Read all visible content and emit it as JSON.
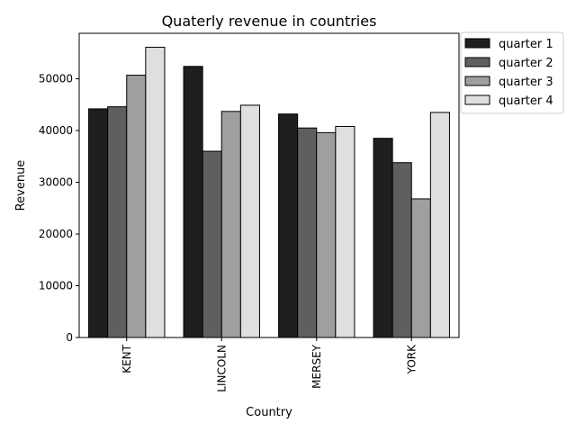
{
  "chart_data": {
    "type": "bar",
    "title": "Quaterly revenue in countries",
    "xlabel": "Country",
    "ylabel": "Revenue",
    "categories": [
      "KENT",
      "LINCOLN",
      "MERSEY",
      "YORK"
    ],
    "series": [
      {
        "name": "quarter 1",
        "values": [
          44200,
          52400,
          43200,
          38500
        ],
        "color": "#1f1f1f"
      },
      {
        "name": "quarter 2",
        "values": [
          44600,
          36000,
          40500,
          33800
        ],
        "color": "#5f5f5f"
      },
      {
        "name": "quarter 3",
        "values": [
          50700,
          43700,
          39600,
          26800
        ],
        "color": "#9f9f9f"
      },
      {
        "name": "quarter 4",
        "values": [
          56100,
          44900,
          40800,
          43500
        ],
        "color": "#dfdfdf"
      }
    ],
    "ylim": [
      0,
      58800
    ],
    "yticks": [
      0,
      10000,
      20000,
      30000,
      40000,
      50000
    ],
    "grid": false,
    "legend_position": "outside-top-right"
  }
}
